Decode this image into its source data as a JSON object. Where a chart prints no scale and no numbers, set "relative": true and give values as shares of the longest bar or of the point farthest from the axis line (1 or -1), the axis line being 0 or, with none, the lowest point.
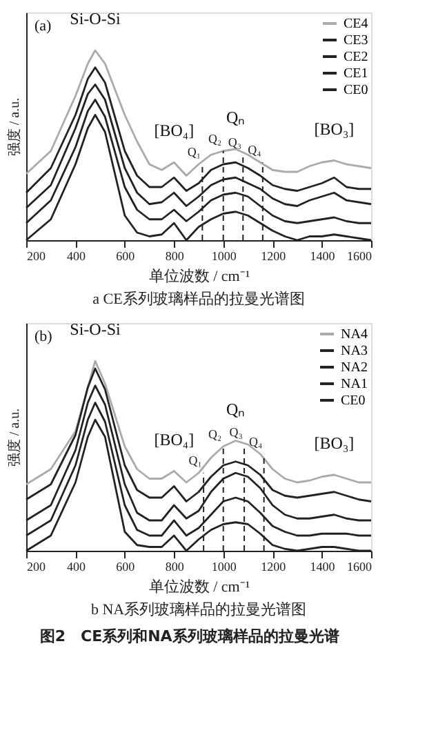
{
  "chart_data": [
    {
      "type": "line",
      "title": "a CE系列玻璃样品的拉曼光谱图",
      "xlabel": "单位波数 / cm⁻¹",
      "ylabel": "强度 / a.u.",
      "relative": true,
      "legend": "top right",
      "x": [
        200,
        300,
        400,
        450,
        480,
        520,
        600,
        650,
        700,
        750,
        800,
        850,
        900,
        950,
        1000,
        1050,
        1100,
        1150,
        1200,
        1250,
        1300,
        1350,
        1400,
        1450,
        1500,
        1550,
        1600
      ],
      "xlim": [
        200,
        1600
      ],
      "xticks": [
        200,
        400,
        600,
        800,
        1000,
        1200,
        1400,
        1600
      ],
      "series": [
        {
          "name": "CE4",
          "color": "#aaaaaa",
          "values": [
            0.35,
            0.47,
            0.76,
            0.93,
            1.0,
            0.93,
            0.66,
            0.52,
            0.4,
            0.37,
            0.41,
            0.34,
            0.4,
            0.45,
            0.47,
            0.48,
            0.45,
            0.41,
            0.37,
            0.36,
            0.36,
            0.39,
            0.41,
            0.42,
            0.4,
            0.39,
            0.38
          ]
        },
        {
          "name": "CE3",
          "color": "#222222",
          "values": [
            0.25,
            0.38,
            0.66,
            0.85,
            0.91,
            0.83,
            0.47,
            0.34,
            0.28,
            0.28,
            0.33,
            0.26,
            0.3,
            0.37,
            0.4,
            0.41,
            0.38,
            0.34,
            0.29,
            0.27,
            0.26,
            0.28,
            0.3,
            0.33,
            0.28,
            0.27,
            0.27
          ]
        },
        {
          "name": "CE2",
          "color": "#222222",
          "values": [
            0.17,
            0.29,
            0.59,
            0.77,
            0.82,
            0.74,
            0.38,
            0.25,
            0.19,
            0.2,
            0.25,
            0.18,
            0.23,
            0.29,
            0.32,
            0.33,
            0.3,
            0.27,
            0.22,
            0.19,
            0.18,
            0.21,
            0.23,
            0.25,
            0.21,
            0.2,
            0.19
          ]
        },
        {
          "name": "CE1",
          "color": "#222222",
          "values": [
            0.09,
            0.21,
            0.49,
            0.68,
            0.74,
            0.65,
            0.28,
            0.16,
            0.11,
            0.11,
            0.16,
            0.1,
            0.15,
            0.21,
            0.24,
            0.25,
            0.23,
            0.18,
            0.13,
            0.1,
            0.09,
            0.1,
            0.11,
            0.12,
            0.1,
            0.09,
            0.09
          ]
        },
        {
          "name": "CE0",
          "color": "#222222",
          "values": [
            0.0,
            0.11,
            0.4,
            0.59,
            0.66,
            0.57,
            0.13,
            0.04,
            0.02,
            0.03,
            0.09,
            0.0,
            0.07,
            0.11,
            0.14,
            0.15,
            0.13,
            0.09,
            0.05,
            0.02,
            0.0,
            0.02,
            0.02,
            0.03,
            0.02,
            0.01,
            0.0
          ]
        }
      ],
      "ref_lines": [
        {
          "axis": "x",
          "value": 915,
          "label": "Q₁",
          "line_style": "dashed"
        },
        {
          "axis": "x",
          "value": 1000,
          "label": "Q₂",
          "line_style": "dashed"
        },
        {
          "axis": "x",
          "value": 1080,
          "label": "Q₃",
          "line_style": "dashed"
        },
        {
          "axis": "x",
          "value": 1160,
          "label": "Q₄",
          "line_style": "dashed"
        }
      ],
      "annotations": [
        "(a)",
        {
          "text": "Si-O-Si",
          "x": 480,
          "y": 1.0
        },
        {
          "text": "[BO₄]",
          "x": 800,
          "y": 0.41
        },
        {
          "text": "Qₙ",
          "x": 1050,
          "y": 0.48
        },
        {
          "text": "[BO₃]",
          "x": 1450,
          "y": 0.42
        }
      ]
    },
    {
      "type": "line",
      "title": "b NA系列玻璃样品的拉曼光谱图",
      "xlabel": "单位波数 / cm⁻¹",
      "ylabel": "强度 / a.u.",
      "relative": true,
      "legend": "top right",
      "x": [
        200,
        300,
        400,
        450,
        480,
        520,
        600,
        650,
        700,
        750,
        800,
        850,
        900,
        950,
        1000,
        1050,
        1100,
        1150,
        1200,
        1250,
        1300,
        1350,
        1400,
        1450,
        1500,
        1550,
        1600
      ],
      "xlim": [
        200,
        1600
      ],
      "xticks": [
        200,
        400,
        600,
        800,
        1000,
        1200,
        1400,
        1600
      ],
      "series": [
        {
          "name": "NA4",
          "color": "#aaaaaa",
          "values": [
            0.35,
            0.43,
            0.63,
            0.86,
            1.0,
            0.88,
            0.55,
            0.43,
            0.38,
            0.38,
            0.42,
            0.36,
            0.41,
            0.49,
            0.55,
            0.58,
            0.56,
            0.51,
            0.43,
            0.38,
            0.36,
            0.37,
            0.39,
            0.4,
            0.38,
            0.36,
            0.36
          ]
        },
        {
          "name": "NA3",
          "color": "#222222",
          "values": [
            0.27,
            0.35,
            0.61,
            0.86,
            0.96,
            0.85,
            0.45,
            0.32,
            0.28,
            0.28,
            0.34,
            0.26,
            0.31,
            0.39,
            0.45,
            0.47,
            0.45,
            0.4,
            0.32,
            0.29,
            0.28,
            0.29,
            0.3,
            0.31,
            0.29,
            0.27,
            0.26
          ]
        },
        {
          "name": "NA2",
          "color": "#222222",
          "values": [
            0.16,
            0.24,
            0.53,
            0.78,
            0.87,
            0.77,
            0.35,
            0.2,
            0.16,
            0.16,
            0.24,
            0.17,
            0.21,
            0.31,
            0.38,
            0.41,
            0.39,
            0.33,
            0.24,
            0.19,
            0.17,
            0.17,
            0.18,
            0.19,
            0.17,
            0.16,
            0.16
          ]
        },
        {
          "name": "NA1",
          "color": "#222222",
          "values": [
            0.08,
            0.16,
            0.45,
            0.69,
            0.78,
            0.68,
            0.24,
            0.11,
            0.08,
            0.08,
            0.16,
            0.08,
            0.12,
            0.19,
            0.26,
            0.28,
            0.26,
            0.2,
            0.13,
            0.1,
            0.08,
            0.08,
            0.09,
            0.09,
            0.09,
            0.08,
            0.08
          ]
        },
        {
          "name": "CE0",
          "color": "#222222",
          "values": [
            0.0,
            0.08,
            0.36,
            0.6,
            0.69,
            0.6,
            0.1,
            0.03,
            0.02,
            0.02,
            0.08,
            0.0,
            0.06,
            0.11,
            0.14,
            0.15,
            0.14,
            0.09,
            0.03,
            0.01,
            0.0,
            0.01,
            0.02,
            0.02,
            0.01,
            0.0,
            0.0
          ]
        }
      ],
      "ref_lines": [
        {
          "axis": "x",
          "value": 920,
          "label": "Q₁",
          "line_style": "dashed"
        },
        {
          "axis": "x",
          "value": 1000,
          "label": "Q₂",
          "line_style": "dashed"
        },
        {
          "axis": "x",
          "value": 1085,
          "label": "Q₃",
          "line_style": "dashed"
        },
        {
          "axis": "x",
          "value": 1165,
          "label": "Q₄",
          "line_style": "dashed"
        }
      ],
      "annotations": [
        "(b)",
        {
          "text": "Si-O-Si",
          "x": 480,
          "y": 1.0
        },
        {
          "text": "[BO₄]",
          "x": 800,
          "y": 0.42
        },
        {
          "text": "Qₙ",
          "x": 1050,
          "y": 0.58
        },
        {
          "text": "[BO₃]",
          "x": 1450,
          "y": 0.4
        },
        "图2　CE系列和NA系列玻璃样品的拉曼光谱"
      ]
    }
  ]
}
